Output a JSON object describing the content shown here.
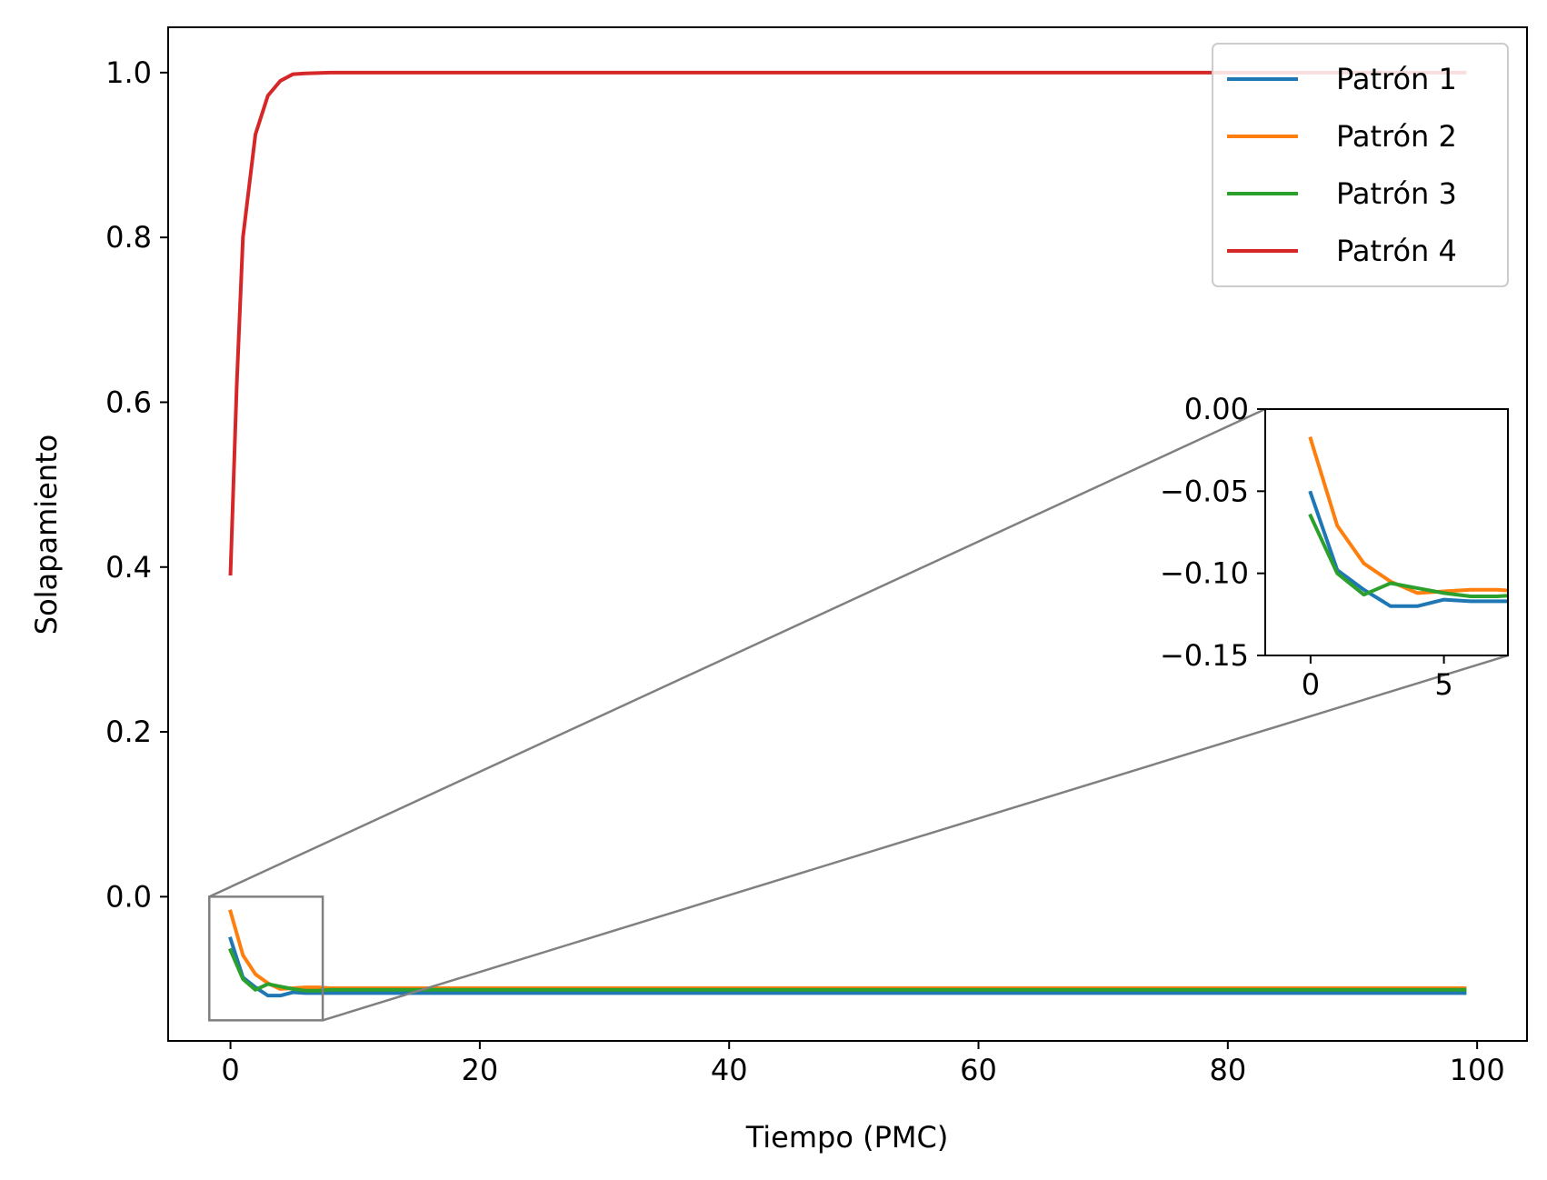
{
  "chart_data": {
    "type": "line",
    "xlabel": "Tiempo (PMC)",
    "ylabel": "Solapamiento",
    "xlim": [
      -5,
      104
    ],
    "ylim": [
      -0.175,
      1.055
    ],
    "xticks": [
      0,
      20,
      40,
      60,
      80,
      100
    ],
    "xtick_labels": [
      "0",
      "20",
      "40",
      "60",
      "80",
      "100"
    ],
    "yticks": [
      0.0,
      0.2,
      0.4,
      0.6,
      0.8,
      1.0
    ],
    "ytick_labels": [
      "0.0",
      "0.2",
      "0.4",
      "0.6",
      "0.8",
      "1.0"
    ],
    "grid": false,
    "legend_position": "upper right",
    "series": [
      {
        "name": "Patrón 1",
        "color": "#1f77b4",
        "x": [
          0,
          1,
          2,
          3,
          4,
          5,
          6,
          7,
          8,
          20,
          40,
          60,
          80,
          99
        ],
        "values": [
          -0.051,
          -0.098,
          -0.11,
          -0.12,
          -0.12,
          -0.116,
          -0.117,
          -0.117,
          -0.117,
          -0.117,
          -0.117,
          -0.117,
          -0.117,
          -0.117
        ]
      },
      {
        "name": "Patrón 2",
        "color": "#ff7f0e",
        "x": [
          0,
          1,
          2,
          3,
          4,
          5,
          6,
          7,
          8,
          20,
          40,
          60,
          80,
          99
        ],
        "values": [
          -0.018,
          -0.071,
          -0.094,
          -0.105,
          -0.112,
          -0.111,
          -0.11,
          -0.11,
          -0.111,
          -0.111,
          -0.111,
          -0.111,
          -0.111,
          -0.111
        ]
      },
      {
        "name": "Patrón 3",
        "color": "#2ca02c",
        "x": [
          0,
          1,
          2,
          3,
          4,
          5,
          6,
          7,
          8,
          20,
          40,
          60,
          80,
          99
        ],
        "values": [
          -0.065,
          -0.1,
          -0.113,
          -0.106,
          -0.109,
          -0.112,
          -0.114,
          -0.114,
          -0.113,
          -0.113,
          -0.113,
          -0.113,
          -0.113,
          -0.113
        ]
      },
      {
        "name": "Patrón 4",
        "color": "#d62728",
        "x": [
          0,
          0.5,
          1,
          2,
          3,
          4,
          5,
          6,
          8,
          20,
          40,
          60,
          80,
          99
        ],
        "values": [
          0.392,
          0.62,
          0.8,
          0.925,
          0.972,
          0.99,
          0.998,
          0.999,
          1.0,
          1.0,
          1.0,
          1.0,
          1.0,
          1.0
        ]
      }
    ],
    "inset": {
      "xlim": [
        -1.7,
        7.4
      ],
      "ylim": [
        -0.15,
        0.0
      ],
      "xticks": [
        0,
        5
      ],
      "xtick_labels": [
        "0",
        "5"
      ],
      "yticks": [
        0.0,
        -0.05,
        -0.1,
        -0.15
      ],
      "ytick_labels": [
        "0.00",
        "−0.05",
        "−0.10",
        "−0.15"
      ],
      "indicator_color": "#808080"
    }
  }
}
